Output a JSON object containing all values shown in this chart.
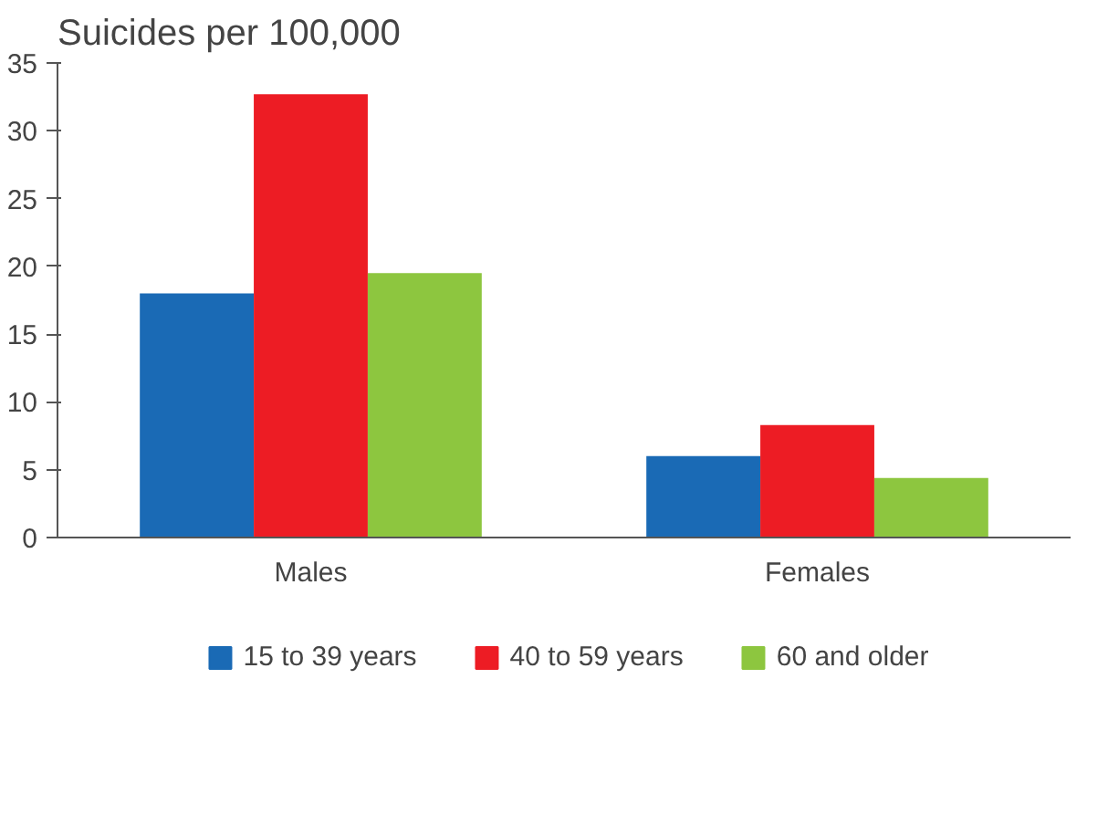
{
  "chart_data": {
    "type": "bar",
    "title": "Suicides per 100,000",
    "categories": [
      "Males",
      "Females"
    ],
    "series": [
      {
        "name": "15 to 39 years",
        "color": "#1a6ab5",
        "values": [
          18.0,
          6.0
        ]
      },
      {
        "name": "40 to 59 years",
        "color": "#ed1c24",
        "values": [
          32.7,
          8.3
        ]
      },
      {
        "name": "60 and older",
        "color": "#8dc63f",
        "values": [
          19.5,
          4.4
        ]
      }
    ],
    "ylim": [
      0,
      35
    ],
    "yticks": [
      0,
      5,
      10,
      15,
      20,
      25,
      30,
      35
    ],
    "grid": false,
    "legend": "bottom"
  }
}
